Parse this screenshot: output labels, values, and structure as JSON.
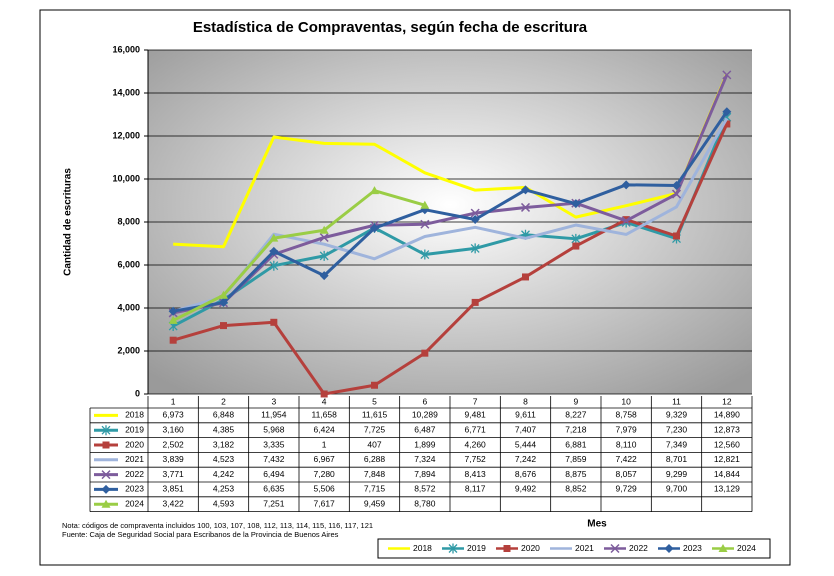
{
  "chart_data": {
    "type": "line",
    "title": "Estadística de Compraventas, según fecha de escritura",
    "y_label": "Cantidad de escrituras",
    "x_label": "Mes",
    "notes": [
      "Nota: códigos de compraventa incluidos 100, 103, 107, 108, 112, 113, 114, 115, 116, 117, 121",
      "Fuente: Caja de Seguridad Social para Escribanos de la Provincia de Buenos Aires"
    ],
    "categories": [
      "1",
      "2",
      "3",
      "4",
      "5",
      "6",
      "7",
      "8",
      "9",
      "10",
      "11",
      "12"
    ],
    "ylim": [
      0,
      16000
    ],
    "yticks": [
      0,
      {
        "value": 2000,
        "label": "2,000"
      },
      {
        "value": 4000,
        "label": "4,000"
      },
      {
        "value": 6000,
        "label": "6,000"
      },
      {
        "value": 8000,
        "label": "8,000"
      },
      {
        "value": 10000,
        "label": "10,000"
      },
      {
        "value": 12000,
        "label": "12,000"
      },
      {
        "value": 14000,
        "label": "14,000"
      },
      {
        "value": 16000,
        "label": "16,000"
      }
    ],
    "grid": true,
    "series": [
      {
        "name": "2018",
        "color": "#ffff00",
        "marker": "none",
        "values": [
          6973,
          6848,
          11954,
          11658,
          11615,
          10289,
          9481,
          9611,
          8227,
          8758,
          9329,
          14890
        ],
        "value_labels": [
          "6,973",
          "6,848",
          "11,954",
          "11,658",
          "11,615",
          "10,289",
          "9,481",
          "9,611",
          "8,227",
          "8,758",
          "9,329",
          "14,890"
        ]
      },
      {
        "name": "2019",
        "color": "#2f9aa6",
        "marker": "asterisk",
        "values": [
          3160,
          4385,
          5968,
          6424,
          7725,
          6487,
          6771,
          7407,
          7218,
          7979,
          7230,
          12873
        ],
        "value_labels": [
          "3,160",
          "4,385",
          "5,968",
          "6,424",
          "7,725",
          "6,487",
          "6,771",
          "7,407",
          "7,218",
          "7,979",
          "7,230",
          "12,873"
        ]
      },
      {
        "name": "2020",
        "color": "#b5403c",
        "marker": "square",
        "values": [
          2502,
          3182,
          3335,
          1,
          407,
          1899,
          4260,
          5444,
          6881,
          8110,
          7349,
          12560
        ],
        "value_labels": [
          "2,502",
          "3,182",
          "3,335",
          "1",
          "407",
          "1,899",
          "4,260",
          "5,444",
          "6,881",
          "8,110",
          "7,349",
          "12,560"
        ]
      },
      {
        "name": "2021",
        "color": "#9fb4dc",
        "marker": "none",
        "values": [
          3839,
          4523,
          7432,
          6967,
          6288,
          7324,
          7752,
          7242,
          7859,
          7422,
          8701,
          12821
        ],
        "value_labels": [
          "3,839",
          "4,523",
          "7,432",
          "6,967",
          "6,288",
          "7,324",
          "7,752",
          "7,242",
          "7,859",
          "7,422",
          "8,701",
          "12,821"
        ]
      },
      {
        "name": "2022",
        "color": "#7d5c9c",
        "marker": "x",
        "values": [
          3771,
          4242,
          6494,
          7280,
          7848,
          7894,
          8413,
          8676,
          8875,
          8057,
          9299,
          14844
        ],
        "value_labels": [
          "3,771",
          "4,242",
          "6,494",
          "7,280",
          "7,848",
          "7,894",
          "8,413",
          "8,676",
          "8,875",
          "8,057",
          "9,299",
          "14,844"
        ]
      },
      {
        "name": "2023",
        "color": "#2f5f9f",
        "marker": "diamond",
        "values": [
          3851,
          4253,
          6635,
          5506,
          7715,
          8572,
          8117,
          9492,
          8852,
          9729,
          9700,
          13129
        ],
        "value_labels": [
          "3,851",
          "4,253",
          "6,635",
          "5,506",
          "7,715",
          "8,572",
          "8,117",
          "9,492",
          "8,852",
          "9,729",
          "9,700",
          "13,129"
        ]
      },
      {
        "name": "2024",
        "color": "#9acd45",
        "marker": "triangle",
        "values": [
          3422,
          4593,
          7251,
          7617,
          9459,
          8780,
          null,
          null,
          null,
          null,
          null,
          null
        ],
        "value_labels": [
          "3,422",
          "4,593",
          "7,251",
          "7,617",
          "9,459",
          "8,780",
          null,
          null,
          null,
          null,
          null,
          null
        ]
      }
    ]
  }
}
